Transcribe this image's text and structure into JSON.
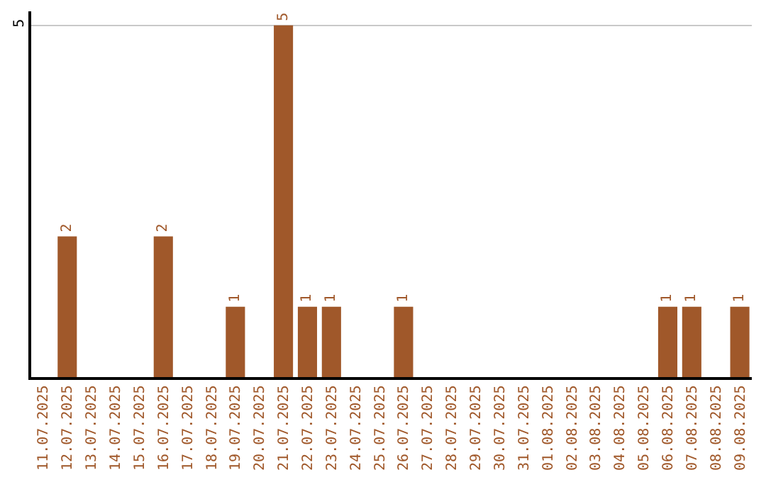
{
  "chart_data": {
    "type": "bar",
    "categories": [
      "11.07.2025",
      "12.07.2025",
      "13.07.2025",
      "14.07.2025",
      "15.07.2025",
      "16.07.2025",
      "17.07.2025",
      "18.07.2025",
      "19.07.2025",
      "20.07.2025",
      "21.07.2025",
      "22.07.2025",
      "23.07.2025",
      "24.07.2025",
      "25.07.2025",
      "26.07.2025",
      "27.07.2025",
      "28.07.2025",
      "29.07.2025",
      "30.07.2025",
      "31.07.2025",
      "01.08.2025",
      "02.08.2025",
      "03.08.2025",
      "04.08.2025",
      "05.08.2025",
      "06.08.2025",
      "07.08.2025",
      "08.08.2025",
      "09.08.2025"
    ],
    "values": [
      0,
      2,
      0,
      0,
      0,
      2,
      0,
      0,
      1,
      0,
      5,
      1,
      1,
      0,
      0,
      1,
      0,
      0,
      0,
      0,
      0,
      0,
      0,
      0,
      0,
      0,
      1,
      1,
      0,
      1
    ],
    "value_labels": [
      null,
      "2",
      null,
      null,
      null,
      "2",
      null,
      null,
      "1",
      null,
      "5",
      "1",
      "1",
      null,
      null,
      "1",
      null,
      null,
      null,
      null,
      null,
      null,
      null,
      null,
      null,
      null,
      "1",
      "1",
      null,
      "1"
    ],
    "color": "#a0582a",
    "ylim": [
      0,
      5.2
    ],
    "yticks": [
      5
    ],
    "grid": "y"
  }
}
